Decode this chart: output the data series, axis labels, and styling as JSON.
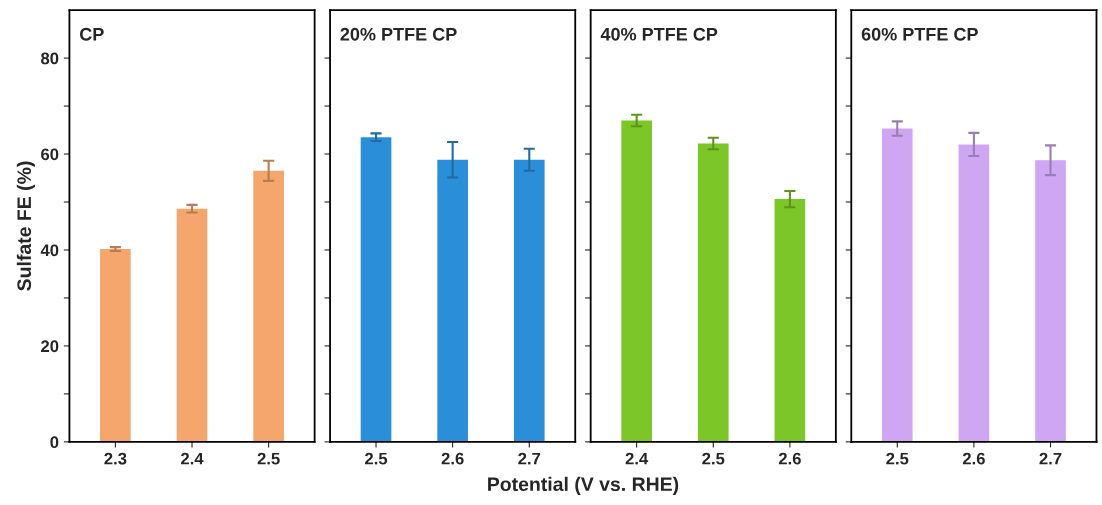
{
  "chart_data": [
    {
      "type": "bar",
      "title": "CP",
      "ylabel": "Sulfate FE (%)",
      "categories": [
        "2.3",
        "2.4",
        "2.5"
      ],
      "series": [
        {
          "color": "#f5a66c",
          "values": [
            40.2,
            48.6,
            56.5
          ],
          "errors": [
            0.4,
            0.8,
            2.1
          ]
        }
      ],
      "ylim": [
        0,
        90
      ],
      "yticks": [
        0,
        {
          "value": 10,
          "label": null
        },
        20,
        {
          "value": 30,
          "label": null
        },
        40,
        {
          "value": 50,
          "label": null
        },
        60,
        {
          "value": 70,
          "label": null
        },
        80
      ],
      "grid": false
    },
    {
      "type": "bar",
      "title": "20% PTFE CP",
      "categories": [
        "2.5",
        "2.6",
        "2.7"
      ],
      "series": [
        {
          "color": "#2a8fd8",
          "values": [
            63.5,
            58.8,
            58.8
          ],
          "errors": [
            0.8,
            3.7,
            2.3
          ]
        }
      ],
      "ylim": [
        0,
        90
      ],
      "yticks": [
        0,
        {
          "value": 10,
          "label": null
        },
        20,
        {
          "value": 30,
          "label": null
        },
        40,
        {
          "value": 50,
          "label": null
        },
        60,
        {
          "value": 70,
          "label": null
        },
        80
      ],
      "tick_labels": "x",
      "grid": false
    },
    {
      "type": "bar",
      "title": "40% PTFE CP",
      "xlabel": "Potential (V vs. RHE)",
      "categories": [
        "2.4",
        "2.5",
        "2.6"
      ],
      "series": [
        {
          "color": "#7cc628",
          "values": [
            67.0,
            62.2,
            50.6
          ],
          "errors": [
            1.2,
            1.2,
            1.7
          ]
        }
      ],
      "ylim": [
        0,
        90
      ],
      "yticks": [
        0,
        {
          "value": 10,
          "label": null
        },
        20,
        {
          "value": 30,
          "label": null
        },
        40,
        {
          "value": 50,
          "label": null
        },
        60,
        {
          "value": 70,
          "label": null
        },
        80
      ],
      "tick_labels": "x",
      "grid": false
    },
    {
      "type": "bar",
      "title": "60% PTFE CP",
      "categories": [
        "2.5",
        "2.6",
        "2.7"
      ],
      "series": [
        {
          "color": "#cfa6f2",
          "values": [
            65.3,
            62.0,
            58.7
          ],
          "errors": [
            1.5,
            2.4,
            3.1
          ]
        }
      ],
      "ylim": [
        0,
        90
      ],
      "yticks": [
        0,
        {
          "value": 10,
          "label": null
        },
        20,
        {
          "value": 30,
          "label": null
        },
        40,
        {
          "value": 50,
          "label": null
        },
        60,
        {
          "value": 70,
          "label": null
        },
        80
      ],
      "tick_labels": "x",
      "grid": false
    }
  ]
}
